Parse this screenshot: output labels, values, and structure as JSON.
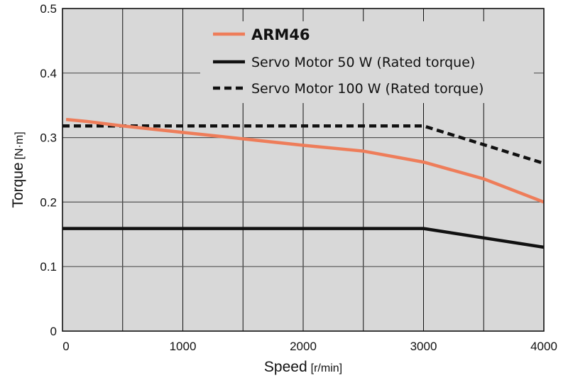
{
  "chart_data": {
    "type": "line",
    "title": "",
    "xlabel": "Speed",
    "xlabel_unit": "[r/min]",
    "ylabel": "Torque",
    "ylabel_unit": "[N·m]",
    "xlim": [
      0,
      4000
    ],
    "ylim": [
      0,
      0.5
    ],
    "x_ticks": [
      0,
      1000,
      2000,
      3000,
      4000
    ],
    "x_tick_labels": [
      "0",
      "1000",
      "2000",
      "3000",
      "4000"
    ],
    "y_ticks": [
      0,
      0.1,
      0.2,
      0.3,
      0.4,
      0.5
    ],
    "y_tick_labels": [
      "0",
      "0.1",
      "0.2",
      "0.3",
      "0.4",
      "0.5"
    ],
    "x_gridlines": [
      500,
      1000,
      1500,
      2000,
      2500,
      3000,
      3500
    ],
    "y_gridlines": [
      0.1,
      0.2,
      0.3,
      0.4
    ],
    "grid": true,
    "legend_position": "top-right",
    "series": [
      {
        "name": "ARM46",
        "color": "#ee7d5a",
        "style": "solid",
        "x": [
          30,
          200,
          500,
          1000,
          1500,
          2000,
          2500,
          3000,
          3500,
          4000
        ],
        "y": [
          0.328,
          0.325,
          0.318,
          0.308,
          0.298,
          0.288,
          0.279,
          0.262,
          0.236,
          0.2
        ]
      },
      {
        "name": "Servo Motor 50 W (Rated torque)",
        "color": "#111111",
        "style": "solid",
        "x": [
          0,
          3000,
          4000
        ],
        "y": [
          0.159,
          0.159,
          0.13
        ]
      },
      {
        "name": "Servo Motor 100 W (Rated torque)",
        "color": "#111111",
        "style": "dashed",
        "x": [
          0,
          3000,
          4000
        ],
        "y": [
          0.318,
          0.318,
          0.26
        ]
      }
    ]
  }
}
